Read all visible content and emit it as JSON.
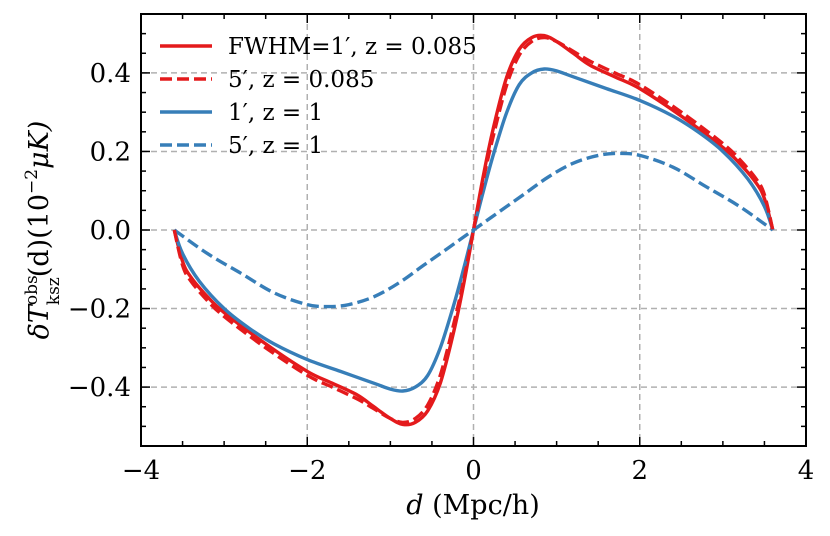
{
  "chart_data": {
    "type": "line",
    "xlabel_symbol": "d",
    "xlabel_unit": " (Mpc/h)",
    "ylabel": "δT",
    "ylabel_sup": "obs",
    "ylabel_sub": "ksz",
    "ylabel_rest": "(d)(10",
    "ylabel_exp": "−2",
    "ylabel_unit": "μK)",
    "xlim": [
      -4,
      4
    ],
    "ylim": [
      -0.55,
      0.55
    ],
    "xticks": [
      -4,
      -2,
      0,
      2,
      4
    ],
    "xtick_labels": [
      "−4",
      "−2",
      "0",
      "2",
      "4"
    ],
    "yticks": [
      -0.4,
      -0.2,
      0.0,
      0.2,
      0.4
    ],
    "ytick_labels": [
      "−0.4",
      "−0.2",
      "0.0",
      "0.2",
      "0.4"
    ],
    "grid": true,
    "legend_position": "top-left",
    "series": [
      {
        "name": "FWHM=1′, z = 0.085",
        "color": "#e41a1c",
        "style": "solid",
        "x": [
          -3.6,
          -3.5,
          -3.4,
          -3.2,
          -3.0,
          -2.5,
          -2.0,
          -1.7,
          -1.4,
          -1.2,
          -1.0,
          -0.85,
          -0.7,
          -0.55,
          -0.4,
          -0.25,
          -0.12,
          0.0,
          0.12,
          0.25,
          0.4,
          0.55,
          0.7,
          0.85,
          1.0,
          1.2,
          1.4,
          1.7,
          2.0,
          2.5,
          3.0,
          3.2,
          3.4,
          3.5,
          3.6
        ],
        "y": [
          0.0,
          -0.08,
          -0.12,
          -0.17,
          -0.21,
          -0.29,
          -0.36,
          -0.39,
          -0.42,
          -0.45,
          -0.48,
          -0.495,
          -0.49,
          -0.46,
          -0.39,
          -0.27,
          -0.14,
          0.0,
          0.14,
          0.27,
          0.39,
          0.46,
          0.49,
          0.495,
          0.48,
          0.45,
          0.42,
          0.39,
          0.36,
          0.29,
          0.21,
          0.17,
          0.12,
          0.08,
          0.0
        ]
      },
      {
        "name": "5′, z = 0.085",
        "color": "#e41a1c",
        "style": "dashed",
        "x": [
          -3.6,
          -3.5,
          -3.4,
          -3.2,
          -3.0,
          -2.5,
          -2.0,
          -1.7,
          -1.4,
          -1.2,
          -1.0,
          -0.85,
          -0.7,
          -0.55,
          -0.4,
          -0.25,
          -0.12,
          0.0,
          0.12,
          0.25,
          0.4,
          0.55,
          0.7,
          0.85,
          1.0,
          1.2,
          1.4,
          1.7,
          2.0,
          2.5,
          3.0,
          3.2,
          3.4,
          3.5,
          3.6
        ],
        "y": [
          0.0,
          -0.09,
          -0.13,
          -0.18,
          -0.22,
          -0.3,
          -0.37,
          -0.4,
          -0.43,
          -0.455,
          -0.48,
          -0.49,
          -0.48,
          -0.445,
          -0.37,
          -0.25,
          -0.13,
          0.0,
          0.13,
          0.25,
          0.37,
          0.445,
          0.48,
          0.49,
          0.48,
          0.455,
          0.43,
          0.4,
          0.37,
          0.3,
          0.22,
          0.18,
          0.13,
          0.09,
          0.0
        ]
      },
      {
        "name": "1′, z = 1",
        "color": "#377eb8",
        "style": "solid",
        "x": [
          -3.6,
          -3.5,
          -3.3,
          -3.0,
          -2.7,
          -2.4,
          -2.0,
          -1.6,
          -1.2,
          -1.0,
          -0.85,
          -0.7,
          -0.55,
          -0.4,
          -0.25,
          -0.12,
          0.0,
          0.12,
          0.25,
          0.4,
          0.55,
          0.7,
          0.85,
          1.0,
          1.2,
          1.6,
          2.0,
          2.4,
          2.7,
          3.0,
          3.3,
          3.5,
          3.6
        ],
        "y": [
          0.0,
          -0.06,
          -0.13,
          -0.2,
          -0.25,
          -0.29,
          -0.33,
          -0.36,
          -0.39,
          -0.405,
          -0.41,
          -0.4,
          -0.37,
          -0.3,
          -0.2,
          -0.1,
          0.0,
          0.1,
          0.2,
          0.3,
          0.37,
          0.4,
          0.41,
          0.405,
          0.39,
          0.36,
          0.33,
          0.29,
          0.25,
          0.2,
          0.13,
          0.06,
          0.0
        ]
      },
      {
        "name": "5′, z = 1",
        "color": "#377eb8",
        "style": "dashed",
        "x": [
          -3.6,
          -3.2,
          -2.8,
          -2.4,
          -2.0,
          -1.75,
          -1.5,
          -1.2,
          -0.9,
          -0.6,
          -0.3,
          0.0,
          0.3,
          0.6,
          0.9,
          1.2,
          1.5,
          1.75,
          2.0,
          2.4,
          2.8,
          3.2,
          3.6
        ],
        "y": [
          0.0,
          -0.06,
          -0.11,
          -0.16,
          -0.19,
          -0.195,
          -0.19,
          -0.17,
          -0.135,
          -0.09,
          -0.045,
          0.0,
          0.045,
          0.09,
          0.135,
          0.17,
          0.19,
          0.195,
          0.19,
          0.16,
          0.11,
          0.06,
          0.0
        ]
      }
    ]
  }
}
